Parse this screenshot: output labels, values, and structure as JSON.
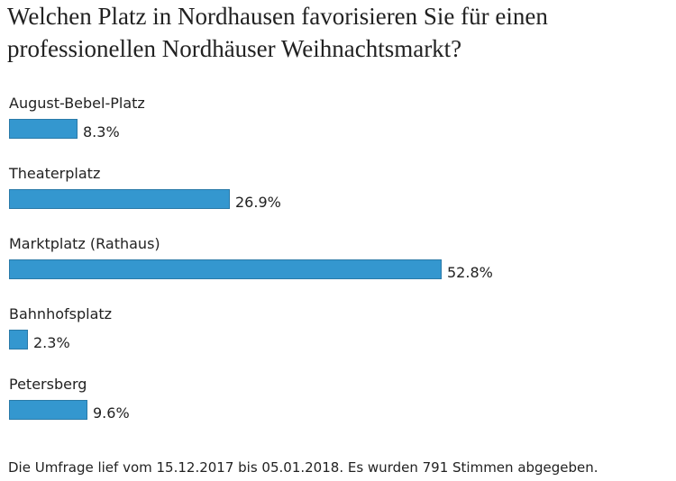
{
  "chart_data": {
    "type": "bar",
    "orientation": "horizontal",
    "title": "Welchen Platz in Nordhausen favorisieren Sie für einen professionellen Nordhäuser Weihnachtsmarkt?",
    "categories": [
      "August-Bebel-Platz",
      "Theaterplatz",
      "Marktplatz (Rathaus)",
      "Bahnhofsplatz",
      "Petersberg"
    ],
    "values": [
      8.3,
      26.9,
      52.8,
      2.3,
      9.6
    ],
    "value_labels": [
      "8.3%",
      "26.9%",
      "52.8%",
      "2.3%",
      "9.6%"
    ],
    "unit": "%",
    "bar_color": "#3497cf",
    "xlim": [
      0,
      100
    ]
  },
  "footer": {
    "text": "Die Umfrage lief vom 15.12.2017 bis 05.01.2018. Es wurden 791 Stimmen abgegeben."
  }
}
